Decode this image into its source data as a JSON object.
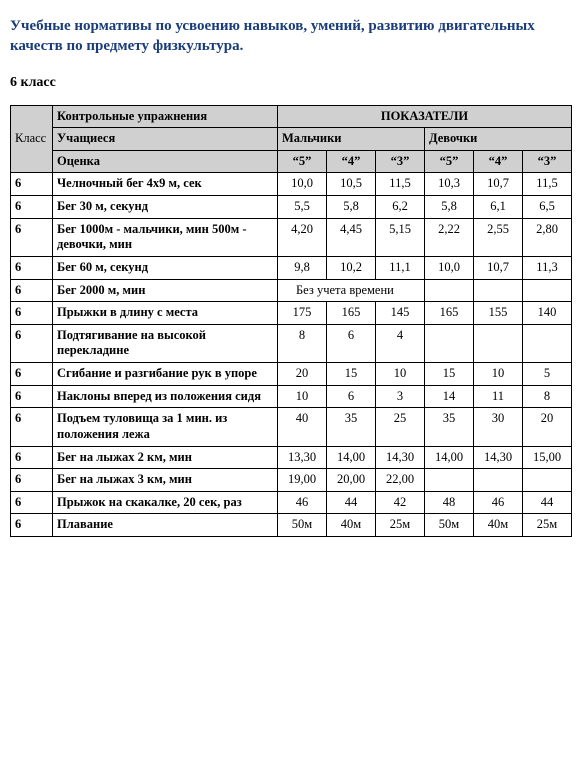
{
  "title": "Учебные нормативы по усвоению навыков, умений, развитию двигательных качеств по предмету физкультура.",
  "subtitle": "6 класс",
  "headers": {
    "klass": "Класс",
    "exercises": "Контрольные упражнения",
    "indicators": "ПОКАЗАТЕЛИ",
    "students": "Учащиеся",
    "boys": "Мальчики",
    "girls": "Девочки",
    "grade": "Оценка",
    "g5": "“5”",
    "g4": "“4”",
    "g3": "“3”"
  },
  "no_time": "Без учета времени",
  "rows": [
    {
      "k": "6",
      "ex": "Челночный бег 4x9 м, сек",
      "b5": "10,0",
      "b4": "10,5",
      "b3": "11,5",
      "g5": "10,3",
      "g4": "10,7",
      "g3": "11,5"
    },
    {
      "k": "6",
      "ex": "Бег 30 м, секунд",
      "b5": "5,5",
      "b4": "5,8",
      "b3": "6,2",
      "g5": "5,8",
      "g4": "6,1",
      "g3": "6,5"
    },
    {
      "k": "6",
      "ex": "Бег 1000м - мальчики, мин 500м - девочки, мин",
      "b5": "4,20",
      "b4": "4,45",
      "b3": "5,15",
      "g5": "2,22",
      "g4": "2,55",
      "g3": "2,80"
    },
    {
      "k": "6",
      "ex": "Бег 60 м, секунд",
      "b5": "9,8",
      "b4": "10,2",
      "b3": "11,1",
      "g5": "10,0",
      "g4": "10,7",
      "g3": "11,3"
    },
    {
      "k": "6",
      "ex": "Бег 2000 м, мин",
      "notime": true
    },
    {
      "k": "6",
      "ex": "Прыжки в длину с места",
      "b5": "175",
      "b4": "165",
      "b3": "145",
      "g5": "165",
      "g4": "155",
      "g3": "140"
    },
    {
      "k": "6",
      "ex": "Подтягивание на высокой перекладине",
      "b5": "8",
      "b4": "6",
      "b3": "4",
      "g5": "",
      "g4": "",
      "g3": ""
    },
    {
      "k": "6",
      "ex": "Сгибание и разгибание рук в упоре",
      "b5": "20",
      "b4": "15",
      "b3": "10",
      "g5": "15",
      "g4": "10",
      "g3": "5"
    },
    {
      "k": "6",
      "ex": "Наклоны вперед из положения сидя",
      "b5": "10",
      "b4": "6",
      "b3": "3",
      "g5": "14",
      "g4": "11",
      "g3": "8"
    },
    {
      "k": "6",
      "ex": "Подъем туловища за 1 мин. из положения лежа",
      "b5": "40",
      "b4": "35",
      "b3": "25",
      "g5": "35",
      "g4": "30",
      "g3": "20"
    },
    {
      "k": "6",
      "ex": "Бег на лыжах 2 км, мин",
      "b5": "13,30",
      "b4": "14,00",
      "b3": "14,30",
      "g5": "14,00",
      "g4": "14,30",
      "g3": "15,00"
    },
    {
      "k": "6",
      "ex": "Бег на лыжах 3 км, мин",
      "b5": "19,00",
      "b4": "20,00",
      "b3": "22,00",
      "g5": "",
      "g4": "",
      "g3": ""
    },
    {
      "k": "6",
      "ex": "Прыжок на скакалке, 20 сек, раз",
      "b5": "46",
      "b4": "44",
      "b3": "42",
      "g5": "48",
      "g4": "46",
      "g3": "44"
    },
    {
      "k": "6",
      "ex": "Плавание",
      "b5": "50м",
      "b4": "40м",
      "b3": "25м",
      "g5": "50м",
      "g4": "40м",
      "g3": "25м"
    }
  ]
}
